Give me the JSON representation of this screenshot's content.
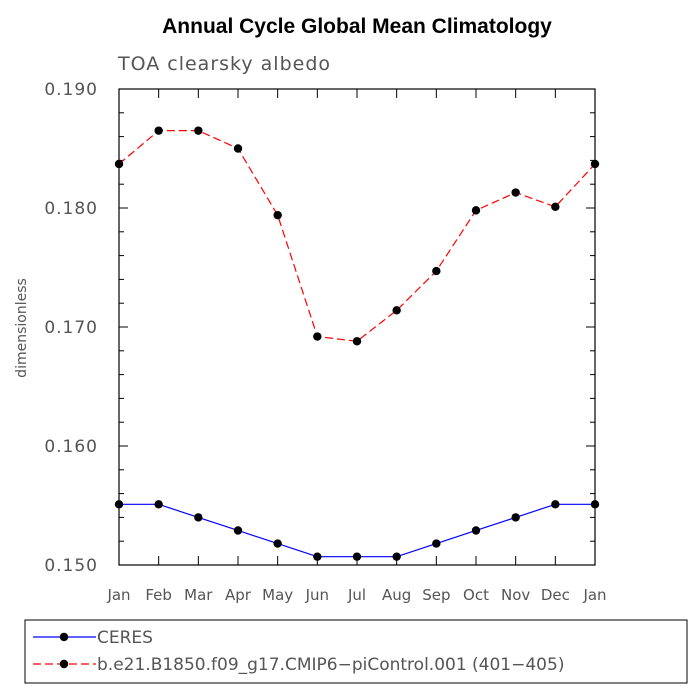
{
  "chart_data": {
    "type": "line",
    "title": "Annual Cycle Global Mean Climatology",
    "subtitle": "TOA clearsky albedo",
    "ylabel": "dimensionless",
    "xlabel": "",
    "categories": [
      "Jan",
      "Feb",
      "Mar",
      "Apr",
      "May",
      "Jun",
      "Jul",
      "Aug",
      "Sep",
      "Oct",
      "Nov",
      "Dec",
      "Jan"
    ],
    "ylim": [
      0.15,
      0.19
    ],
    "yticks": [
      "0.150",
      "0.160",
      "0.170",
      "0.180",
      "0.190"
    ],
    "grid": false,
    "legend_position": "bottom",
    "series": [
      {
        "name": "CERES",
        "color": "#0000ff",
        "dash": "solid",
        "values": [
          0.1551,
          0.1551,
          0.154,
          0.1529,
          0.1518,
          0.1507,
          0.1507,
          0.1507,
          0.1518,
          0.1529,
          0.154,
          0.1551,
          0.1551
        ]
      },
      {
        "name": "b.e21.B1850.f09_g17.CMIP6−piControl.001 (401−405)",
        "color": "#ff0000",
        "dash": "dashed",
        "values": [
          0.1837,
          0.1865,
          0.1865,
          0.185,
          0.1794,
          0.1692,
          0.1688,
          0.1714,
          0.1747,
          0.1798,
          0.1813,
          0.1801,
          0.1837
        ]
      }
    ]
  }
}
